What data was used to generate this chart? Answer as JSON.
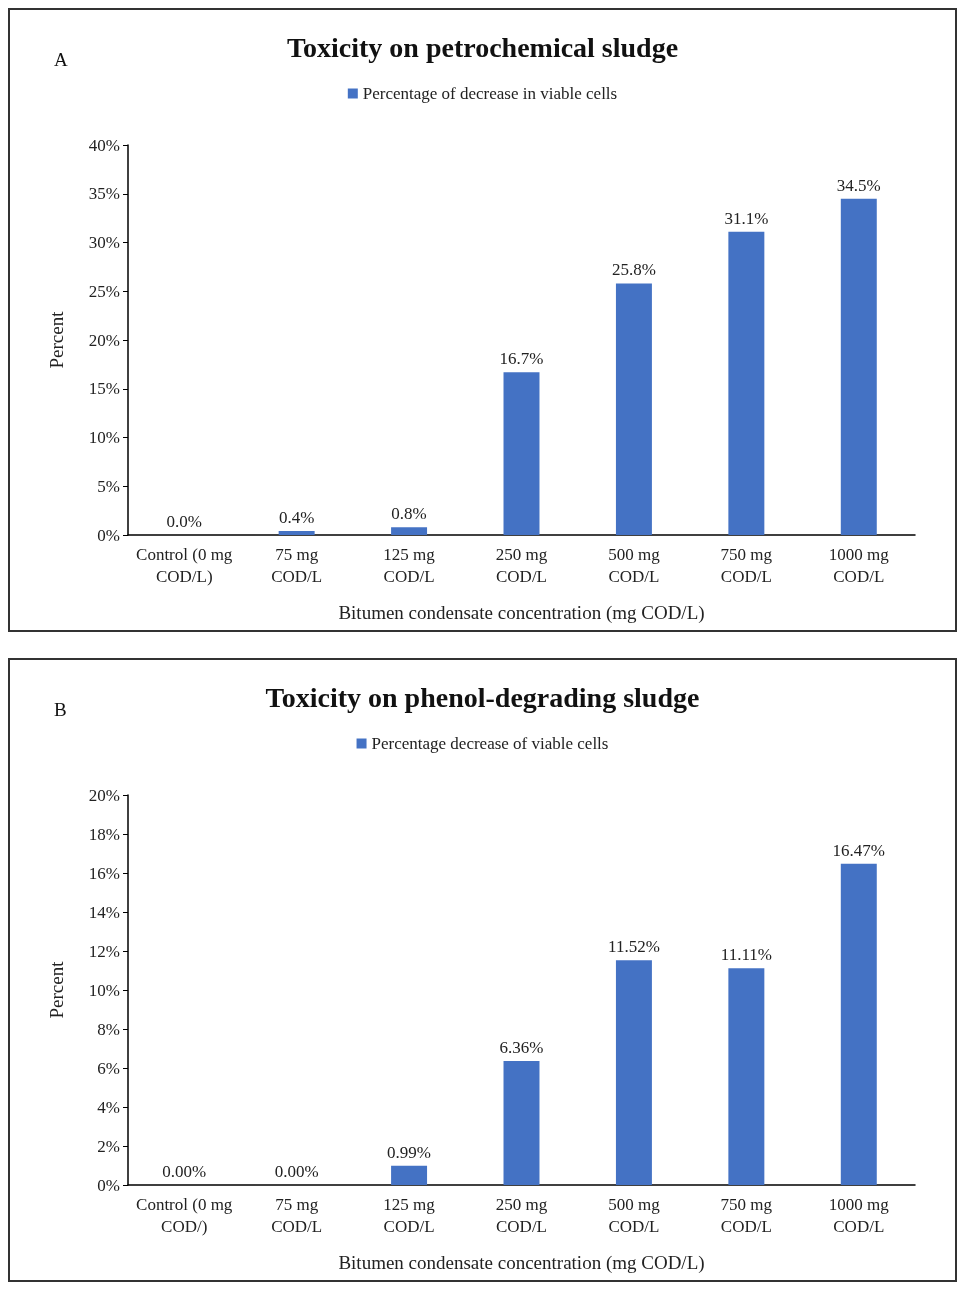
{
  "chart_data": [
    {
      "type": "bar",
      "title": "Toxicity on petrochemical sludge",
      "xlabel": "Bitumen condensate concentration (mg COD/L)",
      "ylabel": "Percent",
      "annotations": [
        "A"
      ],
      "legend": "top",
      "categories": [
        "Control (0 mg\nCOD/L)",
        "75 mg\nCOD/L",
        "125 mg\nCOD/L",
        "250 mg\nCOD/L",
        "500 mg\nCOD/L",
        "750 mg\nCOD/L",
        "1000 mg\nCOD/L"
      ],
      "series": [
        {
          "name": "Percentage of decrease in viable cells",
          "color": "#4472c4",
          "values": [
            0.0,
            0.4,
            0.8,
            16.7,
            25.8,
            31.1,
            34.5
          ],
          "value_labels": [
            "0.0%",
            "0.4%",
            "0.8%",
            "16.7%",
            "25.8%",
            "31.1%",
            "34.5%"
          ]
        }
      ],
      "ylim": [
        0,
        40
      ],
      "yticks": [
        {
          "value": 0,
          "label": "0%"
        },
        {
          "value": 5,
          "label": "5%"
        },
        {
          "value": 10,
          "label": "10%"
        },
        {
          "value": 15,
          "label": "15%"
        },
        {
          "value": 20,
          "label": "20%"
        },
        {
          "value": 25,
          "label": "25%"
        },
        {
          "value": 30,
          "label": "30%"
        },
        {
          "value": 35,
          "label": "35%"
        },
        {
          "value": 40,
          "label": "40%"
        }
      ]
    },
    {
      "type": "bar",
      "title": "Toxicity on phenol-degrading sludge",
      "xlabel": "Bitumen condensate concentration (mg COD/L)",
      "ylabel": "Percent",
      "annotations": [
        "B"
      ],
      "legend": "top",
      "categories": [
        "Control (0 mg\nCOD/)",
        "75 mg\nCOD/L",
        "125 mg\nCOD/L",
        "250 mg\nCOD/L",
        "500 mg\nCOD/L",
        "750 mg\nCOD/L",
        "1000 mg\nCOD/L"
      ],
      "series": [
        {
          "name": "Percentage decrease of viable cells",
          "color": "#4472c4",
          "values": [
            0.0,
            0.0,
            0.99,
            6.36,
            11.52,
            11.11,
            16.47
          ],
          "value_labels": [
            "0.00%",
            "0.00%",
            "0.99%",
            "6.36%",
            "11.52%",
            "11.11%",
            "16.47%"
          ]
        }
      ],
      "ylim": [
        0,
        20
      ],
      "yticks": [
        {
          "value": 0,
          "label": "0%"
        },
        {
          "value": 2,
          "label": "2%"
        },
        {
          "value": 4,
          "label": "4%"
        },
        {
          "value": 6,
          "label": "6%"
        },
        {
          "value": 8,
          "label": "8%"
        },
        {
          "value": 10,
          "label": "10%"
        },
        {
          "value": 12,
          "label": "12%"
        },
        {
          "value": 14,
          "label": "14%"
        },
        {
          "value": 16,
          "label": "16%"
        },
        {
          "value": 18,
          "label": "18%"
        },
        {
          "value": 20,
          "label": "20%"
        }
      ]
    }
  ]
}
